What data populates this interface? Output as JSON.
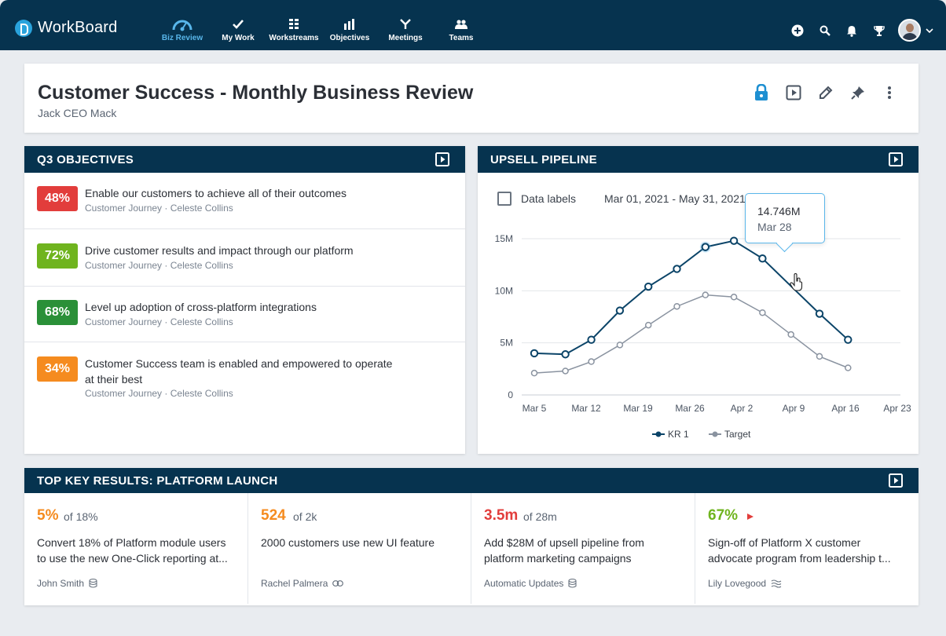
{
  "app": {
    "name": "WorkBoard"
  },
  "nav": [
    {
      "label": "Biz Review",
      "icon": "gauge-icon",
      "active": true
    },
    {
      "label": "My Work",
      "icon": "check-icon"
    },
    {
      "label": "Workstreams",
      "icon": "workstreams-icon"
    },
    {
      "label": "Objectives",
      "icon": "bar-chart-icon"
    },
    {
      "label": "Meetings",
      "icon": "meetings-icon"
    },
    {
      "label": "Teams",
      "icon": "people-icon"
    }
  ],
  "header": {
    "title": "Customer Success - Monthly Business Review",
    "subtitle": "Jack CEO Mack"
  },
  "objectives": {
    "title": "Q3 OBJECTIVES",
    "items": [
      {
        "pct": "48%",
        "color": "#e23d3b",
        "title": "Enable our customers to achieve all of their outcomes",
        "category": "Customer Journey",
        "owner": "Celeste Collins"
      },
      {
        "pct": "72%",
        "color": "#6fb41e",
        "title": "Drive customer results and impact through our platform",
        "category": "Customer Journey",
        "owner": "Celeste Collins"
      },
      {
        "pct": "68%",
        "color": "#2a9038",
        "title": "Level up adoption of cross-platform integrations",
        "category": "Customer Journey",
        "owner": "Celeste Collins"
      },
      {
        "pct": "34%",
        "color": "#f58b1f",
        "title_line1": "Customer Success team is enabled and empowered to operate",
        "title_line2": "at their best",
        "category": "Customer Journey",
        "owner": "Celeste Collins"
      }
    ],
    "separator": "·"
  },
  "pipeline": {
    "title": "UPSELL PIPELINE",
    "data_labels": "Data labels",
    "date_range": "Mar 01, 2021 - May 31, 2021",
    "tooltip": {
      "value": "14.746M",
      "date": "Mar 28"
    }
  },
  "chart_data": {
    "type": "line",
    "x": [
      "Mar 5",
      "Mar 12",
      "Mar 19",
      "Mar 26",
      "Apr 2",
      "Apr 9",
      "Apr 16",
      "Apr 23"
    ],
    "series": [
      {
        "name": "KR 1",
        "color": "#0b4468",
        "points": [
          [
            0,
            4.0
          ],
          [
            0.6,
            3.9
          ],
          [
            1.1,
            5.3
          ],
          [
            1.65,
            8.1
          ],
          [
            2.2,
            10.4
          ],
          [
            2.75,
            12.1
          ],
          [
            3.3,
            14.2
          ],
          [
            3.85,
            14.8
          ],
          [
            4.4,
            13.1
          ],
          [
            5.5,
            7.8
          ],
          [
            6.05,
            5.3
          ]
        ]
      },
      {
        "name": "Target",
        "color": "#8a93a0",
        "points": [
          [
            0,
            2.1
          ],
          [
            0.6,
            2.3
          ],
          [
            1.1,
            3.2
          ],
          [
            1.65,
            4.8
          ],
          [
            2.2,
            6.7
          ],
          [
            2.75,
            8.5
          ],
          [
            3.3,
            9.6
          ],
          [
            3.85,
            9.4
          ],
          [
            4.4,
            7.9
          ],
          [
            4.95,
            5.8
          ],
          [
            5.5,
            3.7
          ],
          [
            6.05,
            2.6
          ]
        ]
      }
    ],
    "yticks": [
      "0",
      "5M",
      "10M",
      "15M"
    ],
    "ytick_values": [
      0,
      5,
      10,
      15
    ],
    "ylim": [
      0,
      15
    ],
    "grid": true,
    "legend": "bottom"
  },
  "key_results": {
    "title": "TOP KEY RESULTS: PLATFORM LAUNCH",
    "items": [
      {
        "value": "5%",
        "of": "of 18%",
        "color": "#f58b1f",
        "line1": "Convert 18% of Platform module users",
        "line2": "to use the new One-Click reporting at...",
        "owner": "John Smith",
        "icon": "database-icon"
      },
      {
        "value": "524",
        "of": "of 2k",
        "color": "#f58b1f",
        "line1": "2000 customers use new UI feature",
        "line2": "",
        "owner": "Rachel Palmera",
        "icon": "link-icon"
      },
      {
        "value": "3.5m",
        "of": "of 28m",
        "color": "#e23d3b",
        "line1": "Add $28M of upsell pipeline from",
        "line2": "platform marketing campaigns",
        "owner": "Automatic Updates",
        "icon": "database-icon"
      },
      {
        "value": "67%",
        "of": "",
        "color": "#6fb41e",
        "line1": "Sign-off of Platform X customer",
        "line2": "advocate program from leadership t...",
        "owner": "Lily Lovegood",
        "icon": "waves-icon"
      }
    ]
  }
}
